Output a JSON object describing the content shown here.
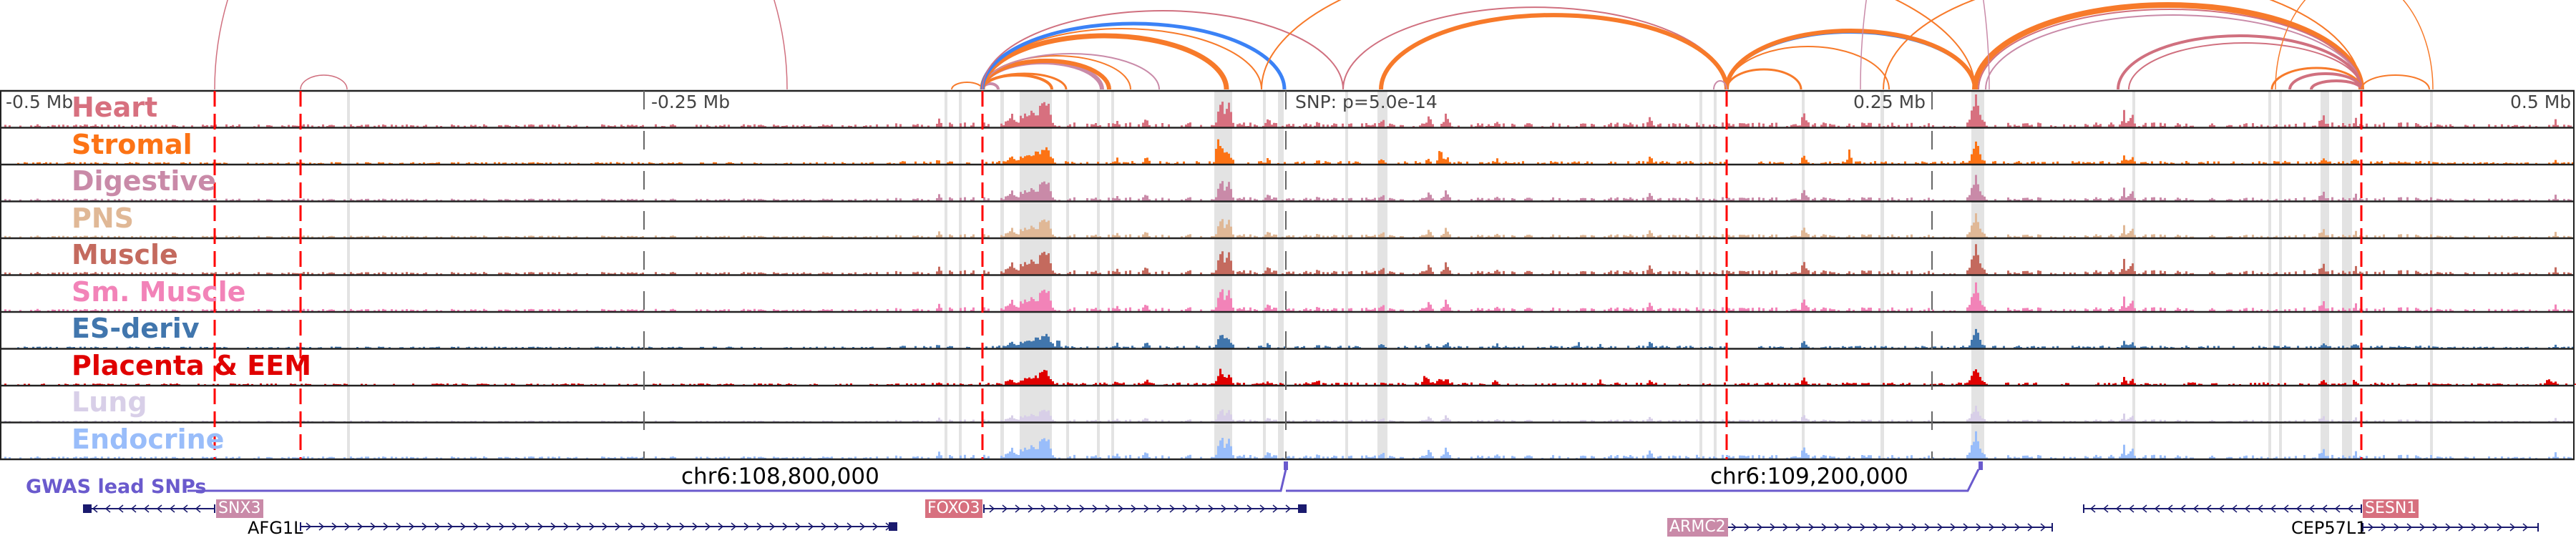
{
  "tracks": [
    {
      "label": "Heart",
      "color": "#d7707f"
    },
    {
      "label": "Stromal",
      "color": "#fc7315"
    },
    {
      "label": "Digestive",
      "color": "#c98aa8"
    },
    {
      "label": "PNS",
      "color": "#e0b896"
    },
    {
      "label": "Muscle",
      "color": "#c46a5e"
    },
    {
      "label": "Sm. Muscle",
      "color": "#f283b8"
    },
    {
      "label": "ES-deriv",
      "color": "#4176ad"
    },
    {
      "label": "Placenta & EEM",
      "color": "#e00000"
    },
    {
      "label": "Lung",
      "color": "#d8cfe8"
    },
    {
      "label": "Endocrine",
      "color": "#99bdfa"
    }
  ],
  "axis": {
    "left": "-0.5 Mb",
    "mid_left": "-0.25 Mb",
    "snp": "SNP: p=5.0e-14",
    "mid_right": "0.25 Mb",
    "right": "0.5 Mb"
  },
  "gwas": {
    "label": "GWAS lead SNPs",
    "color": "#6a5acd"
  },
  "coords": {
    "left": "chr6:108,800,000",
    "right": "chr6:109,200,000"
  },
  "genes": {
    "snx3": "SNX3",
    "afg1l": "AFG1L",
    "foxo3": "FOXO3",
    "armc2": "ARMC2",
    "sesn1": "SESN1",
    "cep57l1": "CEP57L1"
  },
  "colors": {
    "loop_blue": "#3b82f6",
    "highlight_red": "#ff0000",
    "gene_line": "#1a1a6e"
  }
}
